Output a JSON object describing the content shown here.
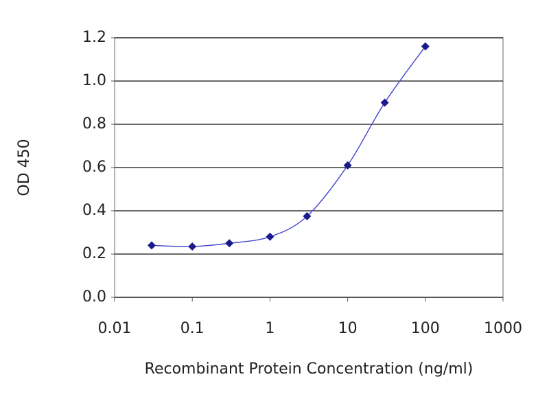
{
  "chart_data": {
    "type": "line",
    "xlabel": "Recombinant Protein Concentration (ng/ml)",
    "ylabel": "OD 450",
    "x": [
      0.03,
      0.1,
      0.3,
      1,
      3,
      10,
      30,
      100
    ],
    "series": [
      {
        "color": "#1a1a8c",
        "values": [
          0.24,
          0.235,
          0.25,
          0.28,
          0.375,
          0.61,
          0.9,
          1.16
        ]
      }
    ],
    "xscale": "log",
    "xlim": [
      0.01,
      1000
    ],
    "xticks": [
      0.01,
      0.1,
      1,
      10,
      100,
      1000
    ],
    "ylim": [
      0,
      1.2
    ],
    "yticks": [
      {
        "value": 0,
        "label": "0.0"
      },
      0.2,
      0.4,
      0.6,
      0.8,
      {
        "value": 1,
        "label": "1.0"
      },
      1.2
    ],
    "grid": true
  }
}
